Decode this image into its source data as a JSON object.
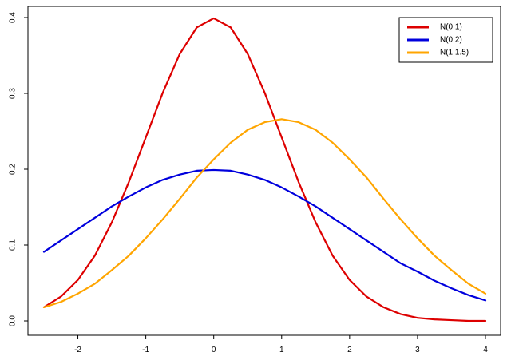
{
  "chart_data": {
    "type": "line",
    "title": "",
    "xlabel": "",
    "ylabel": "",
    "xlim": [
      -2.5,
      4
    ],
    "ylim": [
      0,
      0.4
    ],
    "grid": false,
    "legend_position": "top-right",
    "x_ticks": [
      -2,
      -1,
      0,
      1,
      2,
      3,
      4
    ],
    "x_tick_labels": [
      "-2",
      "-1",
      "0",
      "1",
      "2",
      "3",
      "4"
    ],
    "y_ticks": [
      0,
      0.1,
      0.2,
      0.3,
      0.4
    ],
    "y_tick_labels": [
      "0.0",
      "0.1",
      "0.2",
      "0.3",
      "0.4"
    ],
    "series": [
      {
        "name": "N(0,1)",
        "color": "#dd0000",
        "x": [
          -2.5,
          -2.25,
          -2.0,
          -1.75,
          -1.5,
          -1.25,
          -1.0,
          -0.75,
          -0.5,
          -0.25,
          0.0,
          0.25,
          0.5,
          0.75,
          1.0,
          1.25,
          1.5,
          1.75,
          2.0,
          2.25,
          2.5,
          2.75,
          3.0,
          3.25,
          3.5,
          3.75,
          4.0
        ],
        "y": [
          0.018,
          0.032,
          0.054,
          0.086,
          0.13,
          0.183,
          0.242,
          0.301,
          0.352,
          0.387,
          0.399,
          0.387,
          0.352,
          0.301,
          0.242,
          0.183,
          0.13,
          0.086,
          0.054,
          0.032,
          0.018,
          0.009,
          0.004,
          0.002,
          0.001,
          0.0,
          0.0
        ]
      },
      {
        "name": "N(0,2)",
        "color": "#0000dd",
        "x": [
          -2.5,
          -2.25,
          -2.0,
          -1.75,
          -1.5,
          -1.25,
          -1.0,
          -0.75,
          -0.5,
          -0.25,
          0.0,
          0.25,
          0.5,
          0.75,
          1.0,
          1.25,
          1.5,
          1.75,
          2.0,
          2.25,
          2.5,
          2.75,
          3.0,
          3.25,
          3.5,
          3.75,
          4.0
        ],
        "y": [
          0.091,
          0.106,
          0.121,
          0.136,
          0.151,
          0.164,
          0.176,
          0.186,
          0.193,
          0.198,
          0.199,
          0.198,
          0.193,
          0.186,
          0.176,
          0.164,
          0.151,
          0.136,
          0.121,
          0.106,
          0.091,
          0.076,
          0.065,
          0.053,
          0.043,
          0.034,
          0.027
        ]
      },
      {
        "name": "N(1,1.5)",
        "color": "#ffa500",
        "x": [
          -2.5,
          -2.25,
          -2.0,
          -1.75,
          -1.5,
          -1.25,
          -1.0,
          -0.75,
          -0.5,
          -0.25,
          0.0,
          0.25,
          0.5,
          0.75,
          1.0,
          1.25,
          1.5,
          1.75,
          2.0,
          2.25,
          2.5,
          2.75,
          3.0,
          3.25,
          3.5,
          3.75,
          4.0
        ],
        "y": [
          0.018,
          0.025,
          0.036,
          0.049,
          0.067,
          0.086,
          0.109,
          0.134,
          0.161,
          0.189,
          0.213,
          0.235,
          0.252,
          0.262,
          0.266,
          0.262,
          0.252,
          0.235,
          0.213,
          0.189,
          0.161,
          0.134,
          0.109,
          0.086,
          0.067,
          0.049,
          0.036
        ]
      }
    ]
  }
}
